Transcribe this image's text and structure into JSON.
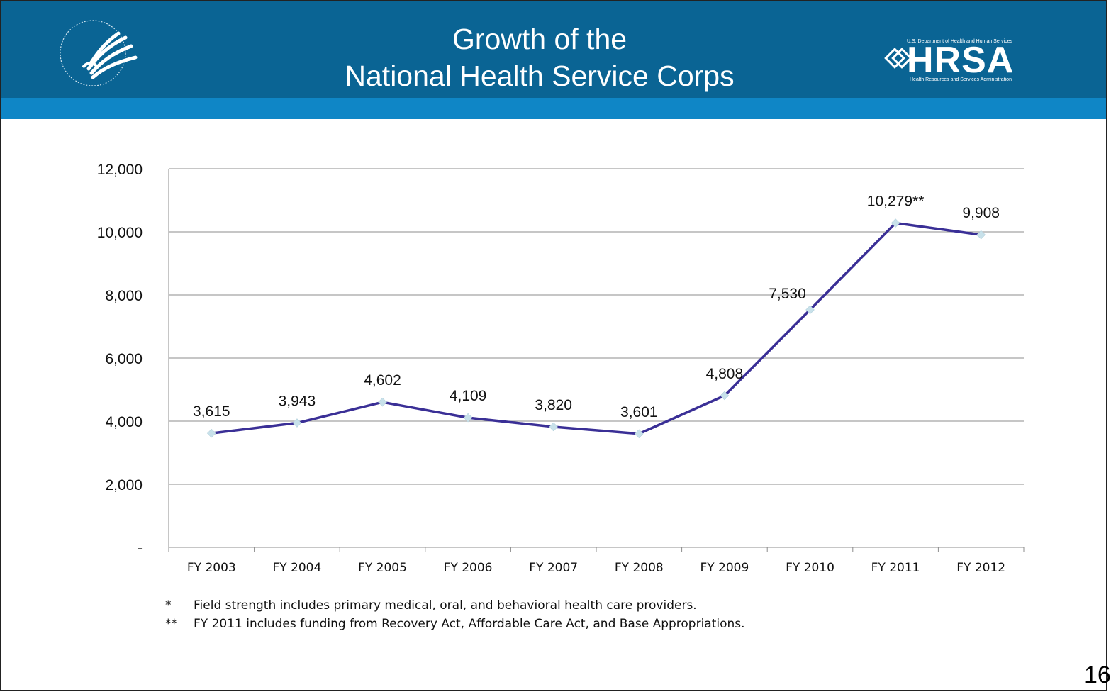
{
  "header": {
    "title_line1": "Growth of the",
    "title_line2": "National Health Service Corps",
    "hrsa_dept": "U.S. Department of Health and Human Services",
    "hrsa_word": "HRSA",
    "hrsa_sub": "Health Resources and Services Administration"
  },
  "chart_data": {
    "type": "line",
    "categories": [
      "FY 2003",
      "FY 2004",
      "FY 2005",
      "FY 2006",
      "FY 2007",
      "FY 2008",
      "FY 2009",
      "FY 2010",
      "FY 2011",
      "FY 2012"
    ],
    "series": [
      {
        "values": [
          3615,
          3943,
          4602,
          4109,
          3820,
          3601,
          4808,
          7530,
          10279,
          9908
        ],
        "data_labels": [
          "3,615",
          "3,943",
          "4,602",
          "4,109",
          "3,820",
          "3,601",
          "4,808",
          "7,530",
          "10,279**",
          "9,908"
        ],
        "color": "#3a2f96",
        "marker_color": "#c8e1ea"
      }
    ],
    "yticks": [
      0,
      2000,
      4000,
      6000,
      8000,
      10000,
      12000
    ],
    "ytick_labels": [
      "-",
      "2,000",
      "4,000",
      "6,000",
      "8,000",
      "10,000",
      "12,000"
    ],
    "ylim": [
      0,
      12000
    ],
    "grid": true,
    "legend": "none",
    "title": "",
    "xlabel": "",
    "ylabel": ""
  },
  "footnotes": [
    {
      "mark": "*",
      "text": "Field strength includes primary medical, oral, and behavioral health care providers."
    },
    {
      "mark": "**",
      "text": "FY 2011 includes funding from  Recovery Act, Affordable Care Act, and Base Appropriations."
    }
  ],
  "page_number": "16"
}
